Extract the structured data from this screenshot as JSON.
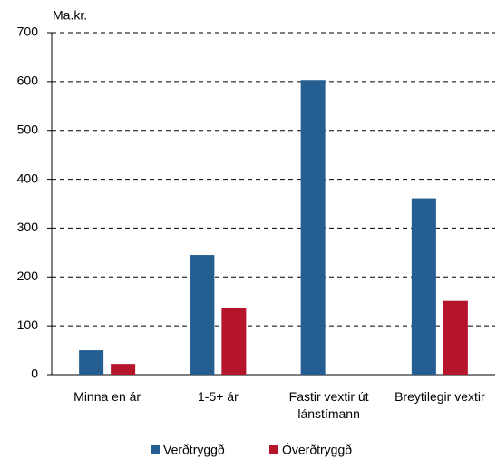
{
  "chart_data": {
    "type": "bar",
    "y_label": "Ma.kr.",
    "categories": [
      "Minna en ár",
      "1-5+ ár",
      "Fastir vextir út lánstímann",
      "Breytilegir vextir"
    ],
    "series": [
      {
        "name": "Verðtryggð",
        "color": "#255e91",
        "values": [
          50,
          245,
          603,
          361
        ]
      },
      {
        "name": "Óverðtryggð",
        "color": "#b5152b",
        "values": [
          22,
          136,
          null,
          151
        ]
      }
    ],
    "ylim": [
      0,
      700
    ],
    "yticks": [
      0,
      100,
      200,
      300,
      400,
      500,
      600,
      700
    ],
    "grid": true,
    "legend": "bottom"
  }
}
